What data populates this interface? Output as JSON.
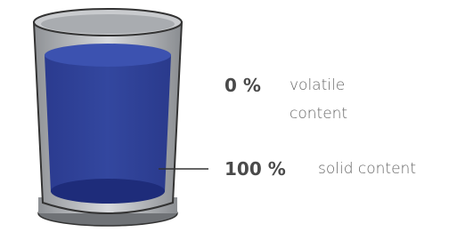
{
  "labels": [
    {
      "amount": "0 %",
      "text": "volatile content"
    },
    {
      "amount": "100 %",
      "text": "solid content"
    }
  ]
}
